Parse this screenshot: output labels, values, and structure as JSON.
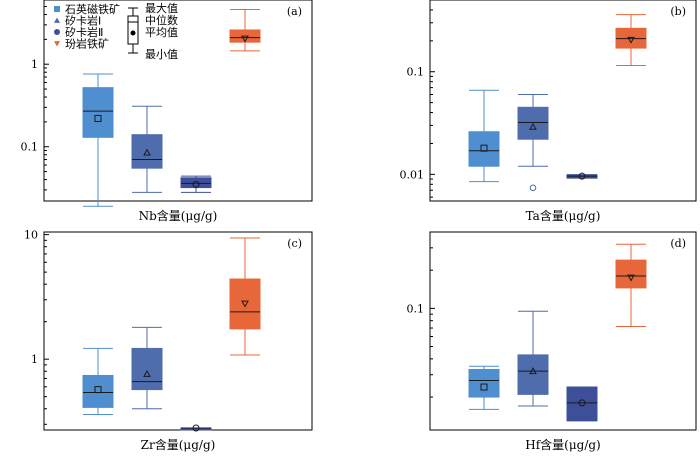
{
  "legend": {
    "series": [
      {
        "name": "石英磁铁矿",
        "marker": "square",
        "color": "#4f8fcf"
      },
      {
        "name": "矽卡岩Ⅰ",
        "marker": "triangle",
        "color": "#4f6cad"
      },
      {
        "name": "矽卡岩Ⅱ",
        "marker": "circle",
        "color": "#3d4f99"
      },
      {
        "name": "玢岩铁矿",
        "marker": "triangle-down",
        "color": "#e8673a"
      }
    ],
    "key": {
      "max": "最大值",
      "median": "中位数",
      "mean": "平均值",
      "min": "最小值"
    }
  },
  "chart_data": [
    {
      "type": "box",
      "panel": "(a)",
      "xlabel": "Nb含量(μg/g)",
      "yscale": "log",
      "ylim": [
        0.022,
        6
      ],
      "yticks": [
        {
          "v": 0.1,
          "label": "0.1"
        },
        {
          "v": 1,
          "label": "1"
        }
      ],
      "series": [
        {
          "name": "石英磁铁矿",
          "min": 0.019,
          "q1": 0.13,
          "median": 0.27,
          "q3": 0.52,
          "max": 0.76,
          "mean": 0.22
        },
        {
          "name": "矽卡岩Ⅰ",
          "min": 0.028,
          "q1": 0.055,
          "median": 0.07,
          "q3": 0.14,
          "max": 0.31,
          "mean": 0.085
        },
        {
          "name": "矽卡岩Ⅱ",
          "min": 0.028,
          "q1": 0.032,
          "median": 0.036,
          "q3": 0.042,
          "max": 0.044,
          "mean": 0.035
        },
        {
          "name": "玢岩铁矿",
          "min": 1.45,
          "q1": 1.85,
          "median": 2.1,
          "q3": 2.6,
          "max": 4.6,
          "mean": 2.05
        }
      ]
    },
    {
      "type": "box",
      "panel": "(b)",
      "xlabel": "Ta含量(μg/g)",
      "yscale": "log",
      "ylim": [
        0.0055,
        0.5
      ],
      "yticks": [
        {
          "v": 0.01,
          "label": "0.01"
        },
        {
          "v": 0.1,
          "label": "0.1"
        }
      ],
      "series": [
        {
          "name": "石英磁铁矿",
          "min": 0.0085,
          "q1": 0.012,
          "median": 0.017,
          "q3": 0.026,
          "max": 0.066,
          "mean": 0.018
        },
        {
          "name": "矽卡岩Ⅰ",
          "min": 0.012,
          "q1": 0.022,
          "median": 0.032,
          "q3": 0.045,
          "max": 0.06,
          "mean": 0.029,
          "outliers": [
            0.0074
          ]
        },
        {
          "name": "矽卡岩Ⅱ",
          "min": 0.0092,
          "q1": 0.0092,
          "median": 0.0096,
          "q3": 0.0099,
          "max": 0.0099,
          "mean": 0.0096
        },
        {
          "name": "玢岩铁矿",
          "min": 0.115,
          "q1": 0.17,
          "median": 0.21,
          "q3": 0.265,
          "max": 0.36,
          "mean": 0.205
        }
      ]
    },
    {
      "type": "box",
      "panel": "(c)",
      "xlabel": "Zr含量(μg/g)",
      "yscale": "log",
      "ylim": [
        0.27,
        10.5
      ],
      "yticks": [
        {
          "v": 1,
          "label": "1"
        },
        {
          "v": 10,
          "label": "10"
        }
      ],
      "series": [
        {
          "name": "石英磁铁矿",
          "min": 0.36,
          "q1": 0.41,
          "median": 0.54,
          "q3": 0.74,
          "max": 1.22,
          "mean": 0.57
        },
        {
          "name": "矽卡岩Ⅰ",
          "min": 0.4,
          "q1": 0.57,
          "median": 0.66,
          "q3": 1.22,
          "max": 1.8,
          "mean": 0.76
        },
        {
          "name": "矽卡岩Ⅱ",
          "min": 0.28,
          "q1": 0.28,
          "median": 0.28,
          "q3": 0.28,
          "max": 0.28,
          "mean": 0.28
        },
        {
          "name": "玢岩铁矿",
          "min": 1.08,
          "q1": 1.75,
          "median": 2.4,
          "q3": 4.4,
          "max": 9.4,
          "mean": 2.8
        }
      ]
    },
    {
      "type": "box",
      "panel": "(d)",
      "xlabel": "Hf含量(μg/g)",
      "yscale": "log",
      "ylim": [
        0.011,
        0.4
      ],
      "yticks": [
        {
          "v": 0.1,
          "label": "0.1"
        }
      ],
      "series": [
        {
          "name": "石英磁铁矿",
          "min": 0.016,
          "q1": 0.02,
          "median": 0.027,
          "q3": 0.033,
          "max": 0.035,
          "mean": 0.024
        },
        {
          "name": "矽卡岩Ⅰ",
          "min": 0.017,
          "q1": 0.021,
          "median": 0.032,
          "q3": 0.043,
          "max": 0.095,
          "mean": 0.032
        },
        {
          "name": "矽卡岩Ⅱ",
          "min": 0.013,
          "q1": 0.013,
          "median": 0.018,
          "q3": 0.024,
          "max": 0.024,
          "mean": 0.018
        },
        {
          "name": "玢岩铁矿",
          "min": 0.072,
          "q1": 0.145,
          "median": 0.18,
          "q3": 0.24,
          "max": 0.32,
          "mean": 0.175
        }
      ]
    }
  ]
}
